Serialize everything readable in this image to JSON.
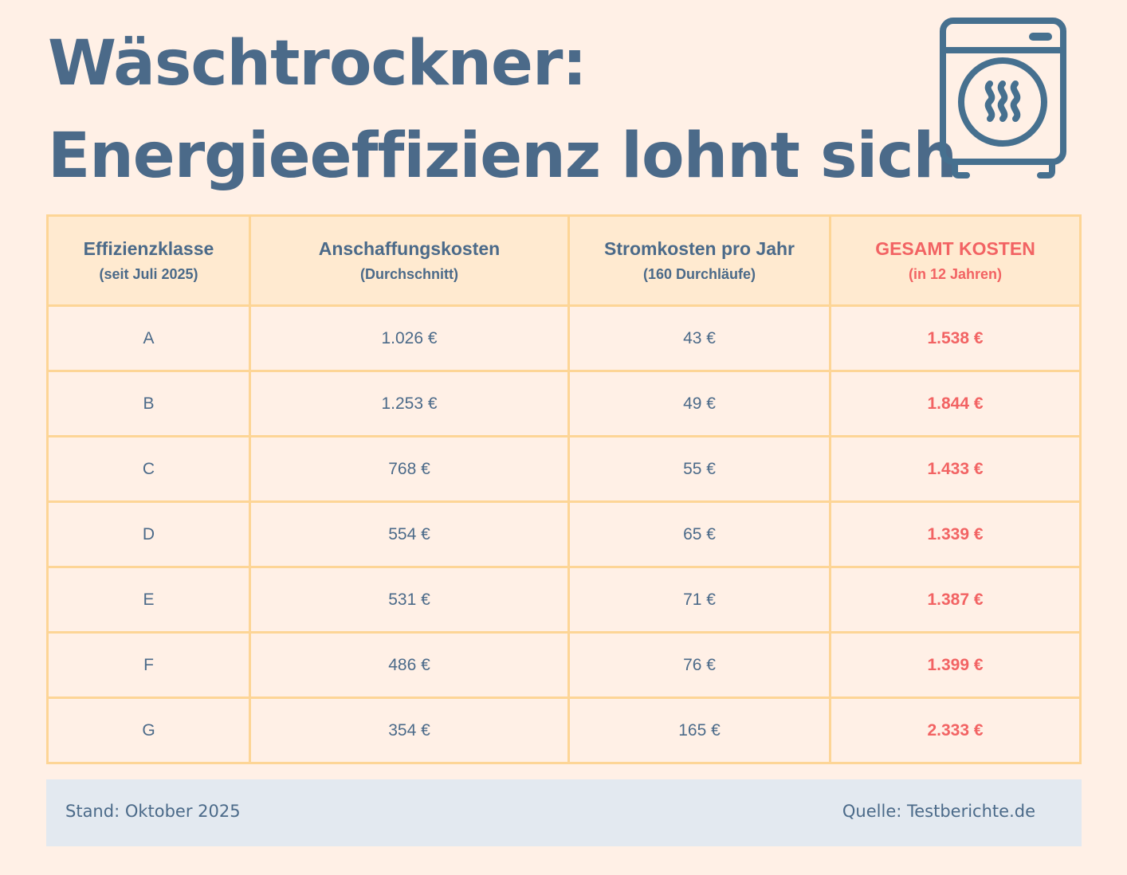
{
  "title": {
    "line1": "Wäschtrockner:",
    "line2": "Energieeffizienz lohnt sich"
  },
  "icon": "tumble-dryer-icon",
  "colors": {
    "text": "#4b6a89",
    "accent": "#f26363",
    "border": "#fdd596",
    "header_bg": "#ffead0",
    "background": "#fff0e6",
    "footer_bg": "#e3e9f0"
  },
  "chart_data": {
    "type": "table",
    "columns": [
      {
        "label": "Effizienzklasse",
        "sub": "(seit Juli 2025)"
      },
      {
        "label": "Anschaffungskosten",
        "sub": "(Durchschnitt)"
      },
      {
        "label": "Stromkosten pro Jahr",
        "sub": "(160 Durchläufe)"
      },
      {
        "label": "GESAMT KOSTEN",
        "sub": "(in 12 Jahren)"
      }
    ],
    "rows": [
      [
        "A",
        "1.026 €",
        "43 €",
        "1.538 €"
      ],
      [
        "B",
        "1.253 €",
        "49 €",
        "1.844 €"
      ],
      [
        "C",
        "768 €",
        "55 €",
        "1.433 €"
      ],
      [
        "D",
        "554 €",
        "65 €",
        "1.339 €"
      ],
      [
        "E",
        "531 €",
        "71 €",
        "1.387 €"
      ],
      [
        "F",
        "486 €",
        "76 €",
        "1.399 €"
      ],
      [
        "G",
        "354 €",
        "165 €",
        "2.333 €"
      ]
    ]
  },
  "footer": {
    "date": "Stand: Oktober 2025",
    "source": "Quelle: Testberichte.de"
  }
}
